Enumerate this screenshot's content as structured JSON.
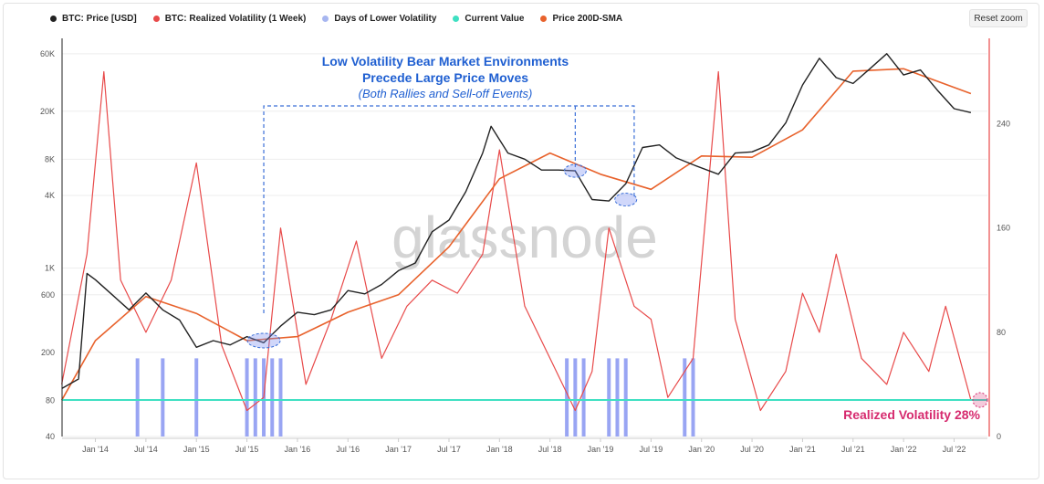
{
  "toolbar": {
    "reset_zoom": "Reset zoom"
  },
  "legend": [
    {
      "label": "BTC: Price [USD]",
      "color": "#222222"
    },
    {
      "label": "BTC: Realized Volatility (1 Week)",
      "color": "#e84a4a"
    },
    {
      "label": "Days of Lower Volatility",
      "color": "#a7b6f0"
    },
    {
      "label": "Current Value",
      "color": "#3fe0c2"
    },
    {
      "label": "Price 200D-SMA",
      "color": "#e8622c"
    }
  ],
  "annotation": {
    "title_line1": "Low Volatility Bear Market Environments",
    "title_line2": "Precede Large Price Moves",
    "subtitle": "(Both Rallies and Sell-off Events)",
    "rv_label": "Realized Volatility 28%"
  },
  "watermark": "glassnode",
  "chart_data": {
    "type": "line",
    "title": "",
    "x_ticks": [
      "Jan '14",
      "Jul '14",
      "Jan '15",
      "Jul '15",
      "Jan '16",
      "Jul '16",
      "Jan '17",
      "Jul '17",
      "Jan '18",
      "Jul '18",
      "Jan '19",
      "Jul '19",
      "Jan '20",
      "Jul '20",
      "Jan '21",
      "Jul '21",
      "Jan '22",
      "Jul '22"
    ],
    "left_axis": {
      "scale": "log",
      "ticks": [
        "40",
        "80",
        "200",
        "600",
        "1K",
        "4K",
        "8K",
        "20K",
        "60K"
      ],
      "ylim": [
        40,
        70000
      ]
    },
    "right_axis": {
      "ticks": [
        "0",
        "80",
        "160",
        "240"
      ],
      "ylim": [
        0,
        300
      ]
    },
    "series": [
      {
        "name": "BTC: Price [USD]",
        "axis": "left",
        "x": [
          "2013-09",
          "2013-11",
          "2013-12",
          "2014-01",
          "2014-03",
          "2014-05",
          "2014-07",
          "2014-09",
          "2014-11",
          "2015-01",
          "2015-03",
          "2015-05",
          "2015-07",
          "2015-09",
          "2015-11",
          "2016-01",
          "2016-03",
          "2016-05",
          "2016-07",
          "2016-09",
          "2016-11",
          "2017-01",
          "2017-03",
          "2017-05",
          "2017-07",
          "2017-09",
          "2017-11",
          "2017-12",
          "2018-02",
          "2018-04",
          "2018-06",
          "2018-08",
          "2018-10",
          "2018-12",
          "2019-02",
          "2019-04",
          "2019-06",
          "2019-08",
          "2019-10",
          "2019-12",
          "2020-03",
          "2020-05",
          "2020-07",
          "2020-09",
          "2020-11",
          "2021-01",
          "2021-03",
          "2021-05",
          "2021-07",
          "2021-09",
          "2021-11",
          "2022-01",
          "2022-03",
          "2022-05",
          "2022-07",
          "2022-09"
        ],
        "values": [
          100,
          120,
          900,
          800,
          600,
          450,
          620,
          450,
          370,
          220,
          250,
          230,
          270,
          240,
          330,
          430,
          410,
          450,
          650,
          610,
          730,
          950,
          1100,
          2000,
          2500,
          4300,
          9000,
          15000,
          9000,
          8000,
          6500,
          6500,
          6400,
          3700,
          3600,
          5000,
          10000,
          10500,
          8200,
          7200,
          6000,
          9000,
          9200,
          10500,
          16000,
          33000,
          55000,
          38000,
          34000,
          45000,
          60000,
          40000,
          44000,
          30000,
          21000,
          19500
        ]
      },
      {
        "name": "Price 200D-SMA",
        "axis": "left",
        "x": [
          "2013-09",
          "2014-01",
          "2014-07",
          "2015-01",
          "2015-07",
          "2016-01",
          "2016-07",
          "2017-01",
          "2017-07",
          "2018-01",
          "2018-07",
          "2019-01",
          "2019-07",
          "2020-01",
          "2020-07",
          "2021-01",
          "2021-07",
          "2022-01",
          "2022-09"
        ],
        "values": [
          80,
          250,
          580,
          420,
          250,
          270,
          430,
          600,
          1500,
          5500,
          9000,
          6000,
          4500,
          8500,
          8300,
          14000,
          43000,
          45000,
          28000
        ]
      },
      {
        "name": "BTC: Realized Volatility (1 Week)",
        "axis": "right",
        "x": [
          "2013-09",
          "2013-12",
          "2014-02",
          "2014-04",
          "2014-07",
          "2014-10",
          "2015-01",
          "2015-04",
          "2015-07",
          "2015-09",
          "2015-11",
          "2016-02",
          "2016-05",
          "2016-08",
          "2016-11",
          "2017-02",
          "2017-05",
          "2017-08",
          "2017-11",
          "2018-01",
          "2018-04",
          "2018-07",
          "2018-10",
          "2018-12",
          "2019-02",
          "2019-05",
          "2019-07",
          "2019-09",
          "2019-12",
          "2020-03",
          "2020-05",
          "2020-08",
          "2020-11",
          "2021-01",
          "2021-03",
          "2021-05",
          "2021-08",
          "2021-11",
          "2022-01",
          "2022-04",
          "2022-06",
          "2022-09"
        ],
        "values": [
          40,
          140,
          280,
          120,
          80,
          120,
          210,
          70,
          20,
          30,
          160,
          40,
          90,
          150,
          60,
          100,
          120,
          110,
          140,
          220,
          100,
          60,
          20,
          50,
          160,
          100,
          90,
          30,
          60,
          280,
          90,
          20,
          50,
          110,
          80,
          140,
          60,
          40,
          80,
          50,
          100,
          28
        ]
      }
    ],
    "current_volatility": 28,
    "low_vol_periods": [
      "2014-06",
      "2014-09",
      "2015-01",
      "2015-07",
      "2015-08",
      "2015-09",
      "2015-10",
      "2015-11",
      "2018-09",
      "2018-10",
      "2018-11",
      "2019-02",
      "2019-03",
      "2019-04",
      "2019-11",
      "2019-12"
    ],
    "grid": true,
    "legend_position": "top-left"
  }
}
